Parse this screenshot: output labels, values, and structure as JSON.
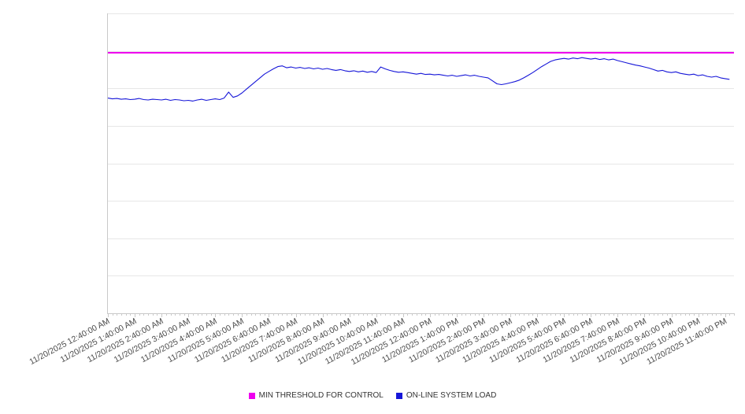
{
  "chart": {
    "background": "#ffffff",
    "grid_color": "#e7e7e7",
    "axis_color": "#c9c9c9",
    "label_color": "#4a4a4a"
  },
  "legend": {
    "items": [
      {
        "label": "MIN THRESHOLD FOR CONTROL",
        "color": "#ee00ee"
      },
      {
        "label": "ON-LINE SYSTEM LOAD",
        "color": "#1616d8"
      }
    ]
  },
  "chart_data": {
    "type": "line",
    "title": "",
    "xlabel": "",
    "ylabel": "",
    "legend_position": "bottom",
    "grid": "horizontal",
    "ylim": [
      0,
      8
    ],
    "y_gridline_step": 1,
    "y_tick_labels_visible": false,
    "x_axis_span_hours": 23.3333,
    "x_tick_interval_minutes": 60,
    "x_minor_tick_interval_minutes": 10,
    "x_tick_labels": [
      "11/20/2025 12:40:00 AM",
      "11/20/2025 1:40:00 AM",
      "11/20/2025 2:40:00 AM",
      "11/20/2025 3:40:00 AM",
      "11/20/2025 4:40:00 AM",
      "11/20/2025 5:40:00 AM",
      "11/20/2025 6:40:00 AM",
      "11/20/2025 7:40:00 AM",
      "11/20/2025 8:40:00 AM",
      "11/20/2025 9:40:00 AM",
      "11/20/2025 10:40:00 AM",
      "11/20/2025 11:40:00 AM",
      "11/20/2025 12:40:00 PM",
      "11/20/2025 1:40:00 PM",
      "11/20/2025 2:40:00 PM",
      "11/20/2025 3:40:00 PM",
      "11/20/2025 4:40:00 PM",
      "11/20/2025 5:40:00 PM",
      "11/20/2025 6:40:00 PM",
      "11/20/2025 7:40:00 PM",
      "11/20/2025 8:40:00 PM",
      "11/20/2025 9:40:00 PM",
      "11/20/2025 10:40:00 PM",
      "11/20/2025 11:40:00 PM"
    ],
    "series": [
      {
        "name": "MIN THRESHOLD FOR CONTROL",
        "type": "horizontal-threshold",
        "color": "#ee00ee",
        "value": 6.95
      },
      {
        "name": "ON-LINE SYSTEM LOAD",
        "type": "line",
        "color": "#1616d8",
        "start_label": "11/20/2025 12:40:00 AM",
        "interval_minutes": 10,
        "values": [
          5.74,
          5.72,
          5.73,
          5.71,
          5.72,
          5.7,
          5.71,
          5.73,
          5.7,
          5.69,
          5.71,
          5.7,
          5.69,
          5.71,
          5.68,
          5.7,
          5.69,
          5.67,
          5.68,
          5.66,
          5.69,
          5.71,
          5.68,
          5.7,
          5.72,
          5.7,
          5.74,
          5.9,
          5.76,
          5.8,
          5.88,
          5.98,
          6.08,
          6.18,
          6.28,
          6.38,
          6.45,
          6.52,
          6.58,
          6.6,
          6.55,
          6.57,
          6.54,
          6.56,
          6.53,
          6.55,
          6.52,
          6.54,
          6.51,
          6.53,
          6.5,
          6.48,
          6.5,
          6.47,
          6.45,
          6.47,
          6.44,
          6.46,
          6.43,
          6.45,
          6.42,
          6.57,
          6.52,
          6.48,
          6.45,
          6.43,
          6.44,
          6.42,
          6.4,
          6.38,
          6.4,
          6.37,
          6.38,
          6.36,
          6.37,
          6.35,
          6.33,
          6.35,
          6.32,
          6.34,
          6.36,
          6.33,
          6.35,
          6.32,
          6.3,
          6.28,
          6.2,
          6.12,
          6.1,
          6.12,
          6.15,
          6.18,
          6.22,
          6.28,
          6.35,
          6.42,
          6.5,
          6.58,
          6.65,
          6.72,
          6.76,
          6.78,
          6.8,
          6.78,
          6.81,
          6.79,
          6.82,
          6.8,
          6.78,
          6.8,
          6.77,
          6.79,
          6.76,
          6.78,
          6.74,
          6.71,
          6.68,
          6.65,
          6.62,
          6.6,
          6.57,
          6.54,
          6.5,
          6.46,
          6.48,
          6.44,
          6.42,
          6.44,
          6.4,
          6.38,
          6.36,
          6.38,
          6.34,
          6.36,
          6.32,
          6.3,
          6.32,
          6.28,
          6.26,
          6.24
        ]
      }
    ]
  }
}
